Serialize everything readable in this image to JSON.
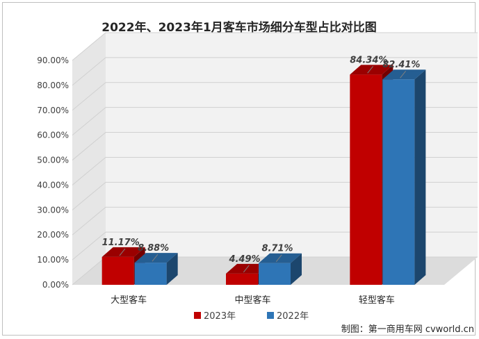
{
  "chart_data": {
    "type": "bar",
    "title": "2022年、2023年1月客车市场细分车型占比对比图",
    "categories": [
      "大型客车",
      "中型客车",
      "轻型客车"
    ],
    "series": [
      {
        "name": "2023年",
        "values": [
          11.17,
          4.49,
          84.34
        ],
        "labels": [
          "11.17%",
          "4.49%",
          "84.34%"
        ],
        "color": "#c00000"
      },
      {
        "name": "2022年",
        "values": [
          8.88,
          8.71,
          82.41
        ],
        "labels": [
          "8.88%",
          "8.71%",
          "82.41%"
        ],
        "color": "#2e75b6"
      }
    ],
    "yticks": [
      "0.00%",
      "10.00%",
      "20.00%",
      "30.00%",
      "40.00%",
      "50.00%",
      "60.00%",
      "70.00%",
      "80.00%",
      "90.00%"
    ],
    "ylim": [
      0,
      90
    ],
    "grid": true,
    "style": "3d-clustered-column",
    "legend_position": "bottom"
  },
  "credit": "制图：第一商用车网 cvworld.cn"
}
